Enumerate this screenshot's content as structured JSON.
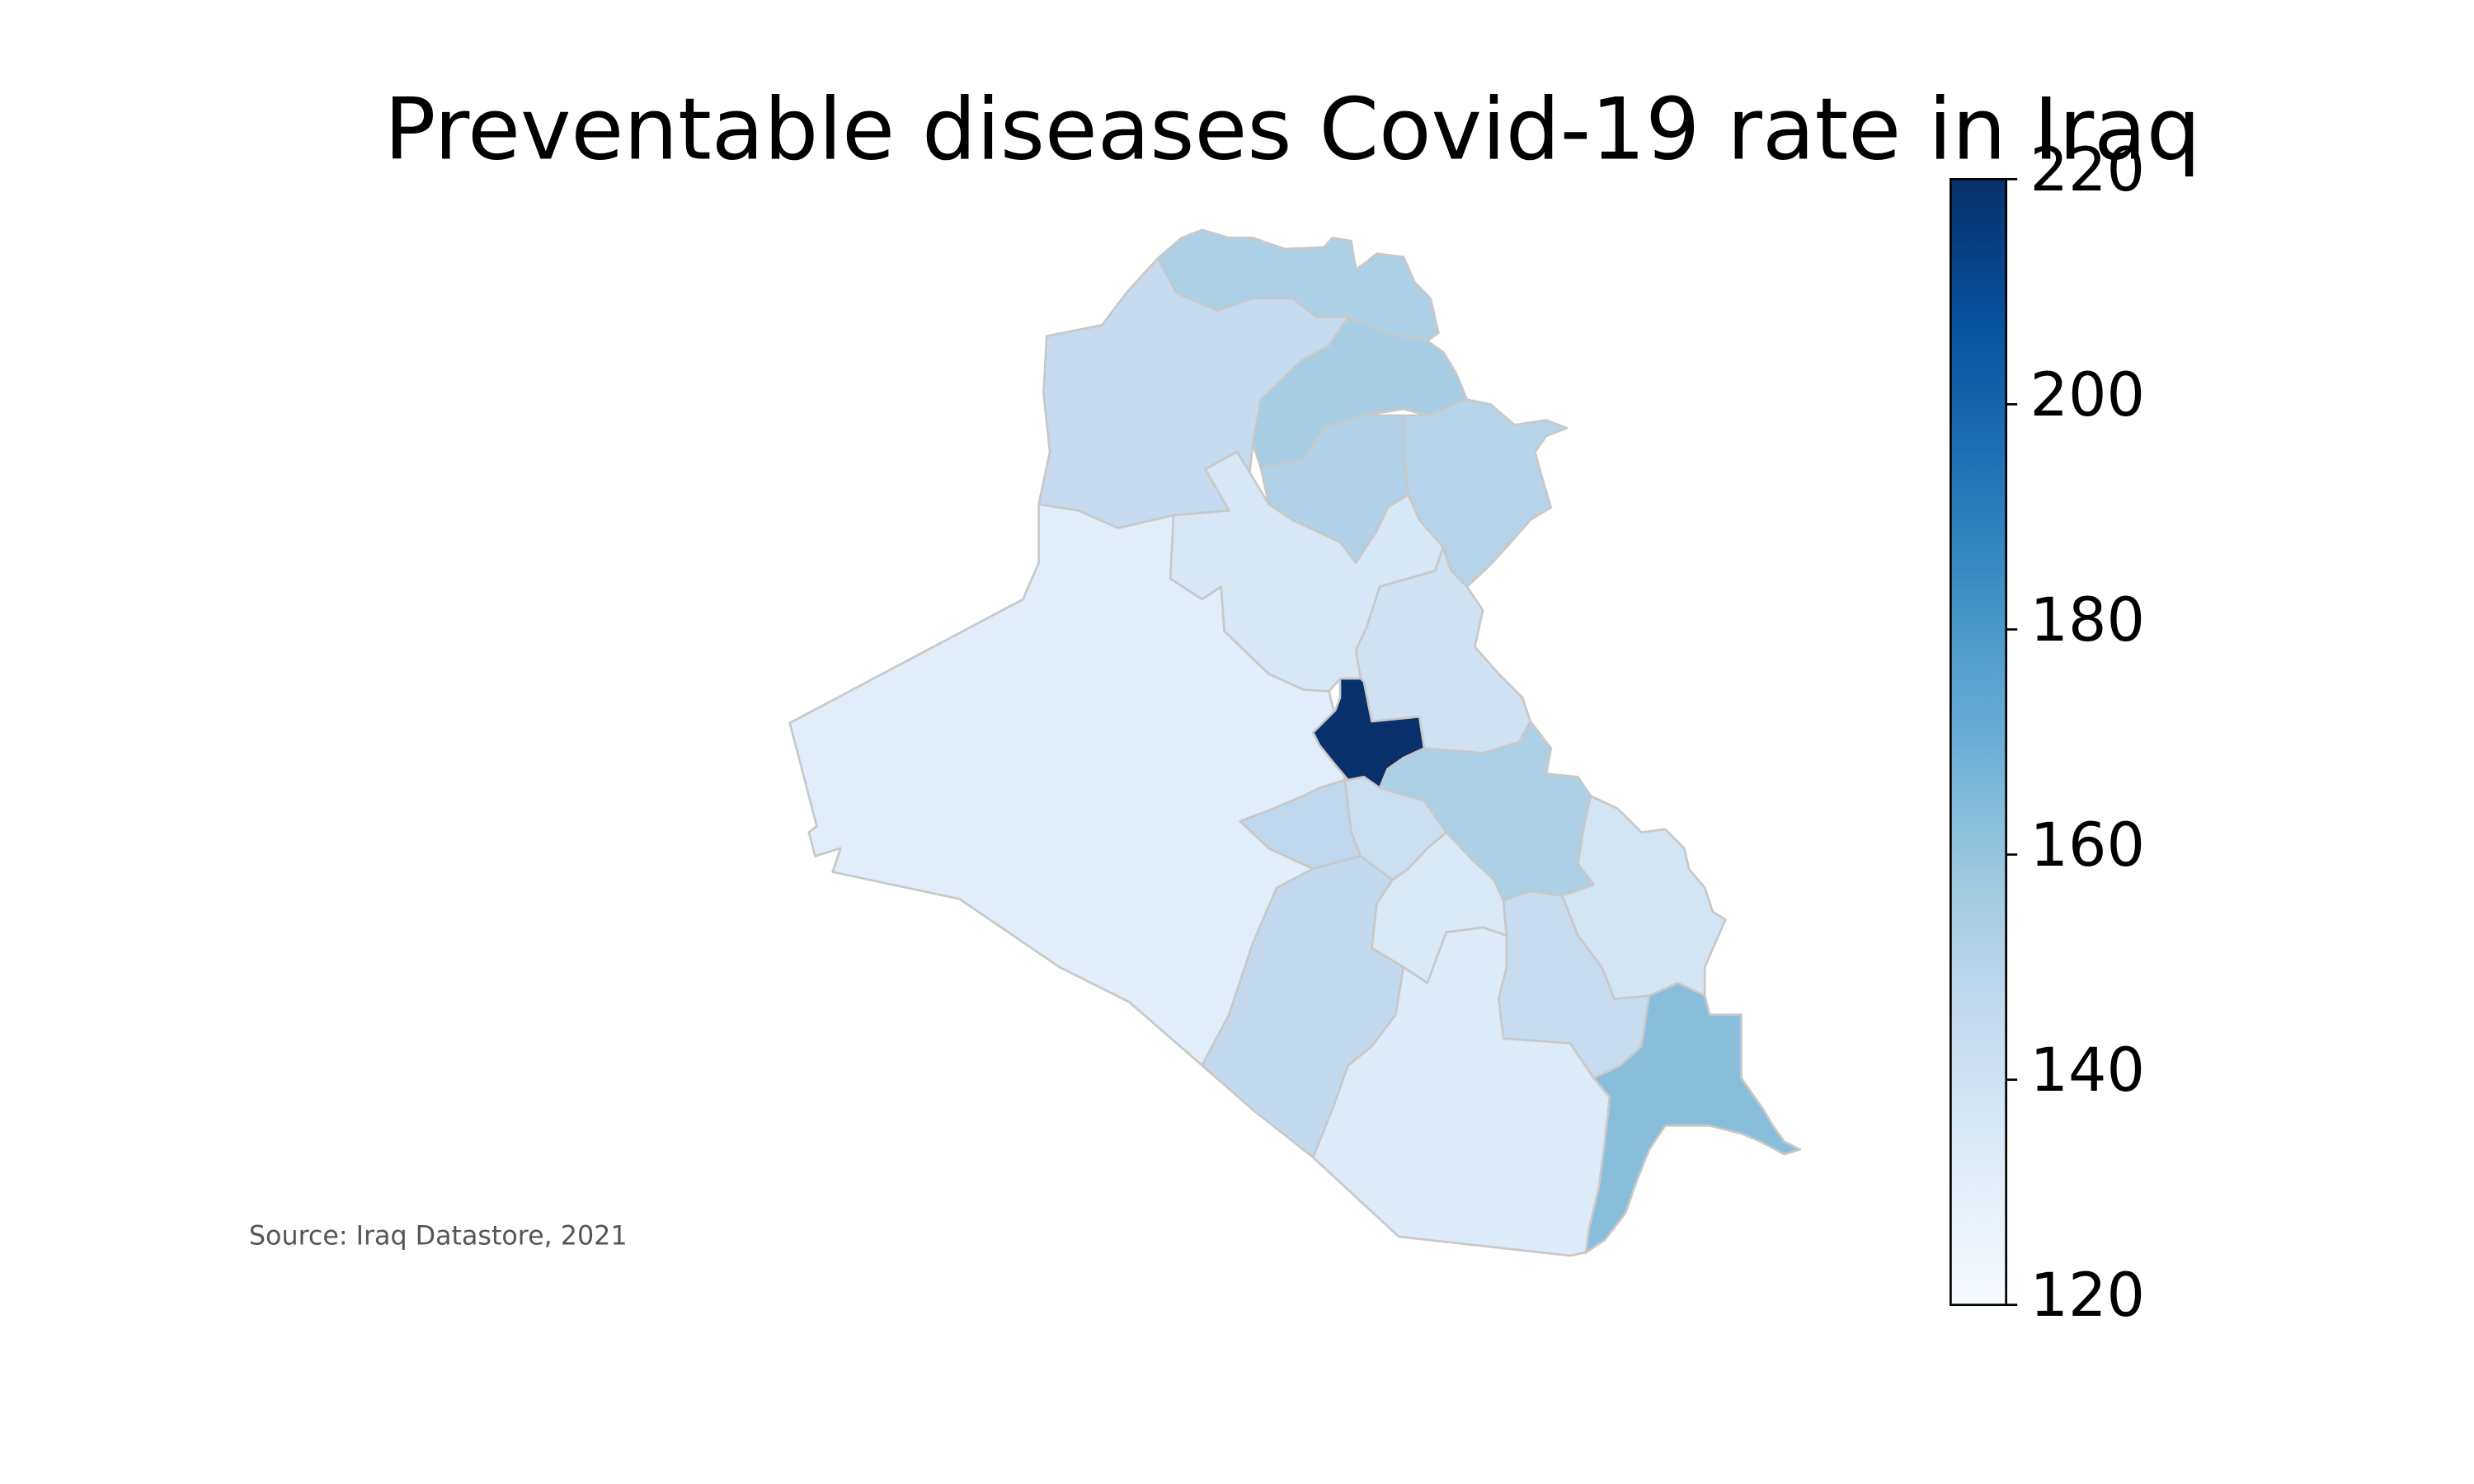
{
  "chart_data": {
    "type": "choropleth",
    "title": "Preventable diseases Covid-19 rate in Iraq",
    "source": "Source: Iraq Datastore, 2021",
    "colormap": "Blues",
    "colorbar": {
      "min": 120,
      "max": 220,
      "ticks": [
        "120",
        "140",
        "160",
        "180",
        "200",
        "220"
      ]
    },
    "regions": [
      {
        "name": "Anbar",
        "value": 131
      },
      {
        "name": "Ninawa",
        "value": 145
      },
      {
        "name": "Dohuk",
        "value": 153
      },
      {
        "name": "Erbil",
        "value": 155
      },
      {
        "name": "Sulaymaniyah",
        "value": 150
      },
      {
        "name": "Kirkuk",
        "value": 152
      },
      {
        "name": "Salah al-Din",
        "value": 136
      },
      {
        "name": "Diyala",
        "value": 140
      },
      {
        "name": "Baghdad",
        "value": 220
      },
      {
        "name": "Wasit",
        "value": 153
      },
      {
        "name": "Babil",
        "value": 142
      },
      {
        "name": "Karbala",
        "value": 147
      },
      {
        "name": "Qadisiyyah",
        "value": 135
      },
      {
        "name": "Najaf",
        "value": 146
      },
      {
        "name": "Dhi Qar",
        "value": 144
      },
      {
        "name": "Maysan",
        "value": 138
      },
      {
        "name": "Muthanna",
        "value": 133
      },
      {
        "name": "Basra",
        "value": 163
      }
    ]
  }
}
